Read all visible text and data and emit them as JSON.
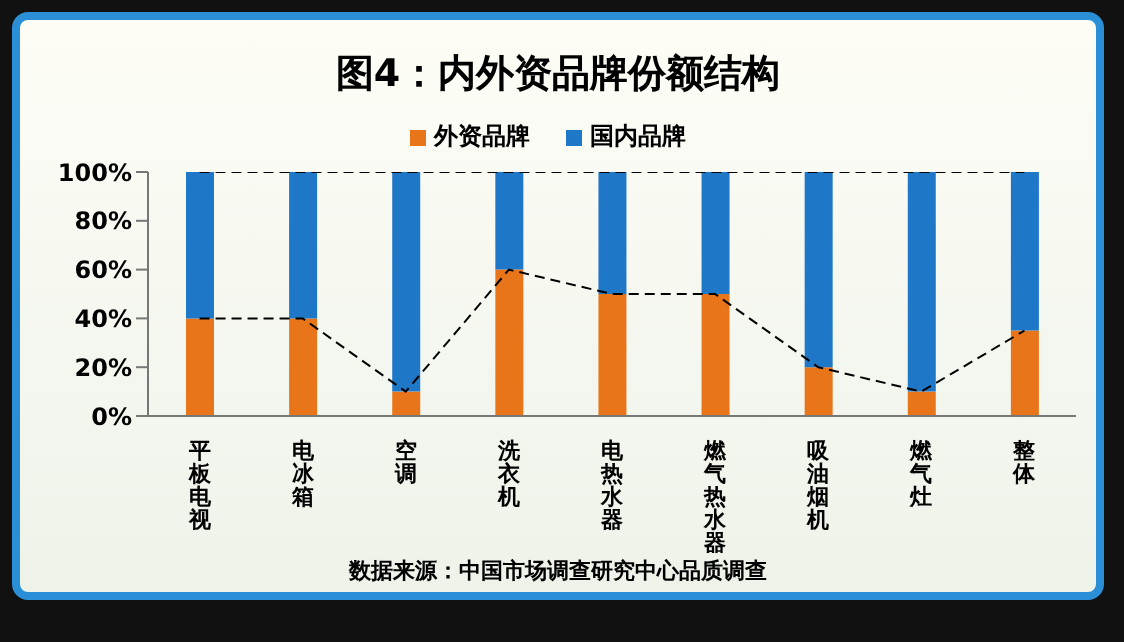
{
  "chart_data": {
    "type": "bar",
    "stacked": true,
    "title": "图4：内外资品牌份额结构",
    "categories": [
      "平板电视",
      "电冰箱",
      "空调",
      "洗衣机",
      "电热水器",
      "燃气热水器",
      "吸油烟机",
      "燃气灶",
      "整体"
    ],
    "series": [
      {
        "type": "line",
        "color": "#000000",
        "line_style": "dashed",
        "values": [
          40,
          40,
          10,
          60,
          50,
          50,
          20,
          10,
          35
        ]
      },
      {
        "type": "line",
        "color": "#000000",
        "line_style": "dashed",
        "values": [
          100,
          100,
          100,
          100,
          100,
          100,
          100,
          100,
          100
        ]
      },
      {
        "name": "外资品牌",
        "color": "#e8751a",
        "values": [
          40,
          40,
          10,
          60,
          50,
          50,
          20,
          10,
          35
        ]
      },
      {
        "name": "国内品牌",
        "color": "#1f77c8",
        "values": [
          60,
          60,
          90,
          40,
          50,
          50,
          80,
          90,
          65
        ]
      }
    ],
    "ylim": [
      0,
      100
    ],
    "yticks": [
      {
        "value": 0,
        "label": "0%"
      },
      {
        "value": 20,
        "label": "20%"
      },
      {
        "value": 40,
        "label": "40%"
      },
      {
        "value": 60,
        "label": "60%"
      },
      {
        "value": 80,
        "label": "80%"
      },
      {
        "value": 100,
        "label": "100%"
      }
    ],
    "legend": "top",
    "annotations": [
      "数据来源：中国市场调查研究中心品质调查"
    ]
  }
}
